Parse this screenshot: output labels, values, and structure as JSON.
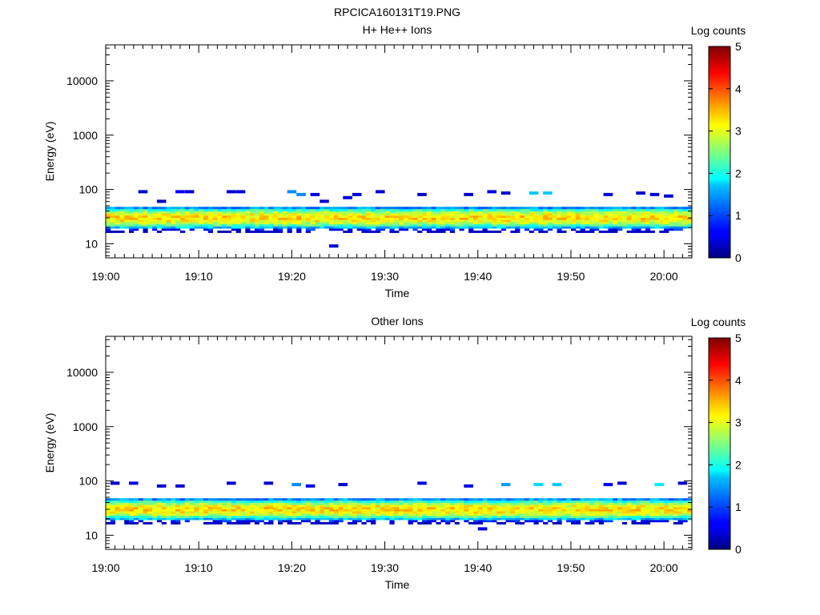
{
  "figure": {
    "title": "RPCICA160131T19.PNG"
  },
  "chart_data": [
    {
      "type": "heatmap",
      "title": "H+ He++ Ions",
      "xlabel": "Time",
      "ylabel": "Energy (eV)",
      "yscale": "log",
      "ylim": [
        5.5,
        46000
      ],
      "x_ticks": [
        "19:00",
        "19:10",
        "19:20",
        "19:30",
        "19:40",
        "19:50",
        "20:00"
      ],
      "x_range_minutes": [
        0,
        63
      ],
      "y_ticks": [
        10,
        100,
        1000,
        10000
      ],
      "y_tick_labels": [
        "10",
        "100",
        "1000",
        "10000"
      ],
      "colorbar": {
        "label": "Log counts",
        "range": [
          0,
          5
        ],
        "ticks": [
          "0",
          "1",
          "2",
          "3",
          "4",
          "5"
        ]
      },
      "band": {
        "center_eV": 30,
        "range_eV": [
          16,
          48
        ],
        "peak_log_counts": 3.3
      },
      "sparse_points": [
        [
          3.5,
          90,
          0.4
        ],
        [
          5.5,
          60,
          0.3
        ],
        [
          7.5,
          90,
          0.6
        ],
        [
          8.5,
          90,
          0.4
        ],
        [
          13,
          90,
          0.4
        ],
        [
          14,
          90,
          0.4
        ],
        [
          19.5,
          90,
          1.3
        ],
        [
          20.5,
          80,
          1.3
        ],
        [
          22,
          80,
          0.5
        ],
        [
          23,
          60,
          0.4
        ],
        [
          24,
          9,
          0.4
        ],
        [
          25.5,
          70,
          0.5
        ],
        [
          26.5,
          80,
          0.4
        ],
        [
          29,
          90,
          0.4
        ],
        [
          33.5,
          80,
          0.4
        ],
        [
          38.5,
          80,
          0.4
        ],
        [
          41,
          90,
          0.5
        ],
        [
          42.5,
          85,
          0.4
        ],
        [
          45.5,
          85,
          1.6
        ],
        [
          47,
          85,
          1.6
        ],
        [
          53.5,
          80,
          0.5
        ],
        [
          57,
          85,
          0.4
        ],
        [
          58.5,
          80,
          0.4
        ],
        [
          60,
          75,
          0.4
        ]
      ]
    },
    {
      "type": "heatmap",
      "title": "Other Ions",
      "xlabel": "Time",
      "ylabel": "Energy (eV)",
      "yscale": "log",
      "ylim": [
        5.5,
        46000
      ],
      "x_ticks": [
        "19:00",
        "19:10",
        "19:20",
        "19:30",
        "19:40",
        "19:50",
        "20:00"
      ],
      "x_range_minutes": [
        0,
        63
      ],
      "y_ticks": [
        10,
        100,
        1000,
        10000
      ],
      "y_tick_labels": [
        "10",
        "100",
        "1000",
        "10000"
      ],
      "colorbar": {
        "label": "Log counts",
        "range": [
          0,
          5
        ],
        "ticks": [
          "0",
          "1",
          "2",
          "3",
          "4",
          "5"
        ]
      },
      "band": {
        "center_eV": 30,
        "range_eV": [
          16,
          48
        ],
        "peak_log_counts": 3.3
      },
      "sparse_points": [
        [
          0.5,
          90,
          0.4
        ],
        [
          2.5,
          90,
          0.5
        ],
        [
          5.5,
          80,
          0.4
        ],
        [
          7.5,
          80,
          0.4
        ],
        [
          13,
          90,
          0.4
        ],
        [
          17,
          90,
          0.4
        ],
        [
          20,
          85,
          1.3
        ],
        [
          21.5,
          80,
          0.5
        ],
        [
          25,
          85,
          0.4
        ],
        [
          33.5,
          90,
          0.5
        ],
        [
          38.5,
          80,
          0.5
        ],
        [
          40,
          13,
          0.5
        ],
        [
          42.5,
          85,
          1.4
        ],
        [
          46,
          85,
          1.7
        ],
        [
          48,
          85,
          1.6
        ],
        [
          53.5,
          85,
          0.6
        ],
        [
          55,
          90,
          0.4
        ],
        [
          59,
          85,
          1.8
        ],
        [
          61.5,
          90,
          0.4
        ]
      ]
    }
  ]
}
